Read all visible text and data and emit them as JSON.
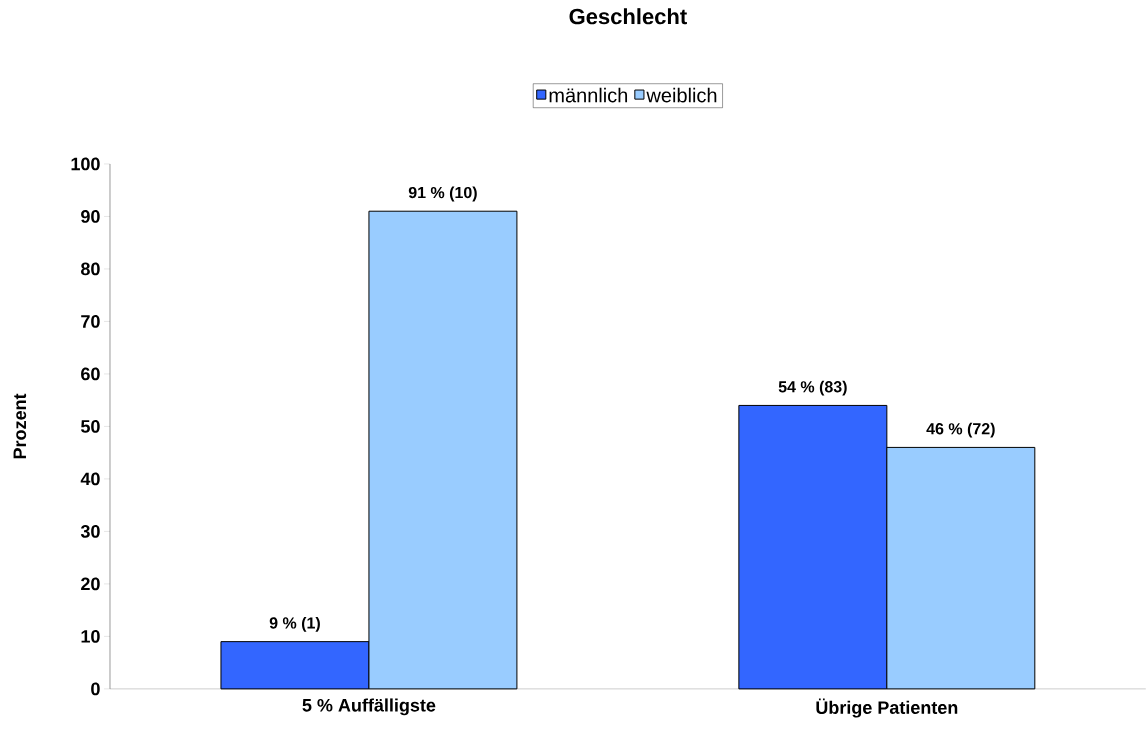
{
  "chart_data": {
    "type": "bar",
    "title": "Geschlecht",
    "ylabel": "Prozent",
    "categories": [
      "5 % Auffälligste",
      "Übrige Patienten"
    ],
    "series": [
      {
        "name": "männlich",
        "color": "#3366ff",
        "values": [
          9,
          54
        ],
        "value_labels": [
          "9 % (1)",
          "54 % (83)"
        ]
      },
      {
        "name": "weiblich",
        "color": "#99ccff",
        "values": [
          91,
          46
        ],
        "value_labels": [
          "91 % (10)",
          "46 % (72)"
        ]
      }
    ],
    "ylim": [
      0,
      100
    ],
    "yticks": [
      0,
      10,
      20,
      30,
      40,
      50,
      60,
      70,
      80,
      90,
      100
    ],
    "legend": "top",
    "grid": false
  }
}
